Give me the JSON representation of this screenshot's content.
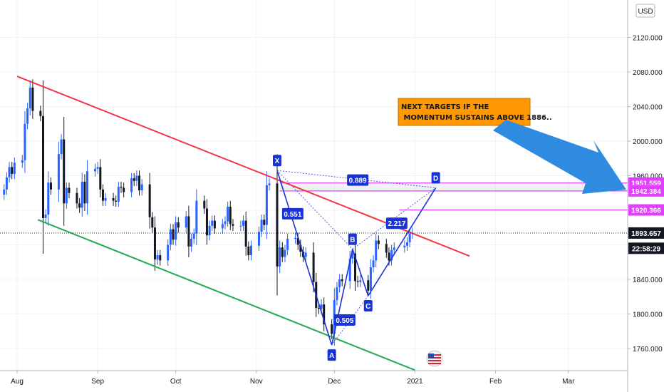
{
  "currency": "USD",
  "chart_data": {
    "type": "candlestick",
    "y_ticks": [
      1760,
      1800,
      1840,
      1880,
      1920,
      1960,
      2000,
      2040,
      2080,
      2120
    ],
    "y_tick_labels": [
      "1760.000",
      "1800.000",
      "1840.000",
      "1880.000",
      "1920.000",
      "1960.000",
      "2000.000",
      "2040.000",
      "2080.000",
      "2120.000"
    ],
    "x_labels": [
      "Aug",
      "Sep",
      "Oct",
      "Nov",
      "Dec",
      "2021",
      "Feb",
      "Mar"
    ],
    "x_label_dates": [
      "2020-08-01",
      "2020-09-01",
      "2020-10-01",
      "2020-11-01",
      "2020-12-01",
      "2021-01-01",
      "2021-02-01",
      "2021-03-01"
    ],
    "price_tags": [
      {
        "label": "1951.559",
        "value": 1951.559,
        "color": "#e040fb"
      },
      {
        "label": "1942.384",
        "value": 1942.384,
        "color": "#e040fb"
      },
      {
        "label": "1920.366",
        "value": 1920.366,
        "color": "#e040fb"
      },
      {
        "label": "1893.657",
        "value": 1893.657,
        "color": "#131722"
      },
      {
        "label": "22:58:29",
        "value": 1876,
        "color": "#131722"
      }
    ],
    "current_price": 1893.657,
    "pattern_points": [
      {
        "label": "X",
        "date": "2020-11-09",
        "value": 1966
      },
      {
        "label": "A",
        "date": "2020-11-30",
        "value": 1764
      },
      {
        "label": "B",
        "date": "2020-12-08",
        "value": 1875
      },
      {
        "label": "C",
        "date": "2020-12-14",
        "value": 1821
      },
      {
        "label": "D",
        "date": "2021-01-09",
        "value": 1946
      }
    ],
    "ratios": [
      {
        "label": "0.889",
        "date": "2020-12-10",
        "value": 1955
      },
      {
        "label": "0.551",
        "date": "2020-11-15",
        "value": 1916
      },
      {
        "label": "2.217",
        "date": "2020-12-25",
        "value": 1905
      },
      {
        "label": "0.505",
        "date": "2020-12-05",
        "value": 1793
      }
    ],
    "resistance_line": {
      "start": {
        "date": "2020-08-01",
        "value": 2075
      },
      "end": {
        "date": "2021-01-22",
        "value": 1867
      }
    },
    "support_line": {
      "start": {
        "date": "2020-08-09",
        "value": 1909
      },
      "end": {
        "date": "2021-01-01",
        "value": 1735
      }
    },
    "target_zone": {
      "top": 1951.559,
      "bottom": 1942.384,
      "start": "2020-11-10"
    },
    "target_line": {
      "value": 1920.366,
      "start": "2020-12-26"
    },
    "annotation": {
      "lines": [
        "NEXT TARGETS IF THE",
        " MOMENTUM SUSTAINS ABOVE 1886.."
      ],
      "bg": "#ff9800"
    },
    "closes": [
      [
        "2020-07-27",
        1944
      ],
      [
        "2020-07-28",
        1958
      ],
      [
        "2020-07-29",
        1970
      ],
      [
        "2020-07-30",
        1962
      ],
      [
        "2020-07-31",
        1975
      ],
      [
        "2020-08-03",
        1978
      ],
      [
        "2020-08-04",
        2020
      ],
      [
        "2020-08-05",
        2038
      ],
      [
        "2020-08-06",
        2062
      ],
      [
        "2020-08-07",
        2035
      ],
      [
        "2020-08-10",
        2029
      ],
      [
        "2020-08-11",
        1911
      ],
      [
        "2020-08-12",
        1915
      ],
      [
        "2020-08-13",
        1952
      ],
      [
        "2020-08-14",
        1944
      ],
      [
        "2020-08-17",
        1985
      ],
      [
        "2020-08-18",
        2002
      ],
      [
        "2020-08-19",
        1928
      ],
      [
        "2020-08-20",
        1946
      ],
      [
        "2020-08-21",
        1940
      ],
      [
        "2020-08-24",
        1928
      ],
      [
        "2020-08-25",
        1923
      ],
      [
        "2020-08-26",
        1953
      ],
      [
        "2020-08-27",
        1928
      ],
      [
        "2020-08-28",
        1965
      ],
      [
        "2020-08-31",
        1968
      ],
      [
        "2020-09-01",
        1970
      ],
      [
        "2020-09-02",
        1944
      ],
      [
        "2020-09-03",
        1931
      ],
      [
        "2020-09-04",
        1934
      ],
      [
        "2020-09-07",
        1931
      ],
      [
        "2020-09-08",
        1930
      ],
      [
        "2020-09-09",
        1947
      ],
      [
        "2020-09-10",
        1946
      ],
      [
        "2020-09-11",
        1941
      ],
      [
        "2020-09-14",
        1957
      ],
      [
        "2020-09-15",
        1954
      ],
      [
        "2020-09-16",
        1960
      ],
      [
        "2020-09-17",
        1943
      ],
      [
        "2020-09-18",
        1950
      ],
      [
        "2020-09-21",
        1912
      ],
      [
        "2020-09-22",
        1900
      ],
      [
        "2020-09-23",
        1863
      ],
      [
        "2020-09-24",
        1868
      ],
      [
        "2020-09-25",
        1862
      ],
      [
        "2020-09-28",
        1880
      ],
      [
        "2020-09-29",
        1898
      ],
      [
        "2020-09-30",
        1886
      ],
      [
        "2020-10-01",
        1906
      ],
      [
        "2020-10-02",
        1900
      ],
      [
        "2020-10-05",
        1913
      ],
      [
        "2020-10-06",
        1878
      ],
      [
        "2020-10-07",
        1887
      ],
      [
        "2020-10-08",
        1893
      ],
      [
        "2020-10-09",
        1931
      ],
      [
        "2020-10-12",
        1922
      ],
      [
        "2020-10-13",
        1891
      ],
      [
        "2020-10-14",
        1902
      ],
      [
        "2020-10-15",
        1908
      ],
      [
        "2020-10-16",
        1899
      ],
      [
        "2020-10-19",
        1904
      ],
      [
        "2020-10-20",
        1907
      ],
      [
        "2020-10-21",
        1924
      ],
      [
        "2020-10-22",
        1904
      ],
      [
        "2020-10-23",
        1902
      ],
      [
        "2020-10-26",
        1902
      ],
      [
        "2020-10-27",
        1908
      ],
      [
        "2020-10-28",
        1878
      ],
      [
        "2020-10-29",
        1868
      ],
      [
        "2020-10-30",
        1879
      ],
      [
        "2020-11-02",
        1895
      ],
      [
        "2020-11-03",
        1909
      ],
      [
        "2020-11-04",
        1903
      ],
      [
        "2020-11-05",
        1949
      ],
      [
        "2020-11-06",
        1951
      ],
      [
        "2020-11-09",
        1855
      ],
      [
        "2020-11-10",
        1877
      ],
      [
        "2020-11-11",
        1866
      ],
      [
        "2020-11-12",
        1874
      ],
      [
        "2020-11-13",
        1887
      ],
      [
        "2020-11-16",
        1888
      ],
      [
        "2020-11-17",
        1880
      ],
      [
        "2020-11-18",
        1872
      ],
      [
        "2020-11-19",
        1866
      ],
      [
        "2020-11-20",
        1871
      ],
      [
        "2020-11-23",
        1837
      ],
      [
        "2020-11-24",
        1807
      ],
      [
        "2020-11-25",
        1806
      ],
      [
        "2020-11-26",
        1811
      ],
      [
        "2020-11-27",
        1788
      ],
      [
        "2020-11-30",
        1777
      ],
      [
        "2020-12-01",
        1816
      ],
      [
        "2020-12-02",
        1831
      ],
      [
        "2020-12-03",
        1840
      ],
      [
        "2020-12-04",
        1838
      ],
      [
        "2020-12-07",
        1864
      ],
      [
        "2020-12-08",
        1870
      ],
      [
        "2020-12-09",
        1838
      ],
      [
        "2020-12-10",
        1837
      ],
      [
        "2020-12-11",
        1839
      ],
      [
        "2020-12-14",
        1827
      ],
      [
        "2020-12-15",
        1854
      ],
      [
        "2020-12-16",
        1862
      ],
      [
        "2020-12-17",
        1885
      ],
      [
        "2020-12-18",
        1881
      ],
      [
        "2020-12-21",
        1871
      ],
      [
        "2020-12-22",
        1862
      ],
      [
        "2020-12-23",
        1874
      ],
      [
        "2020-12-24",
        1877
      ],
      [
        "2020-12-28",
        1879
      ],
      [
        "2020-12-29",
        1883
      ],
      [
        "2020-12-30",
        1893
      ],
      [
        "2020-12-31",
        1894
      ]
    ]
  }
}
